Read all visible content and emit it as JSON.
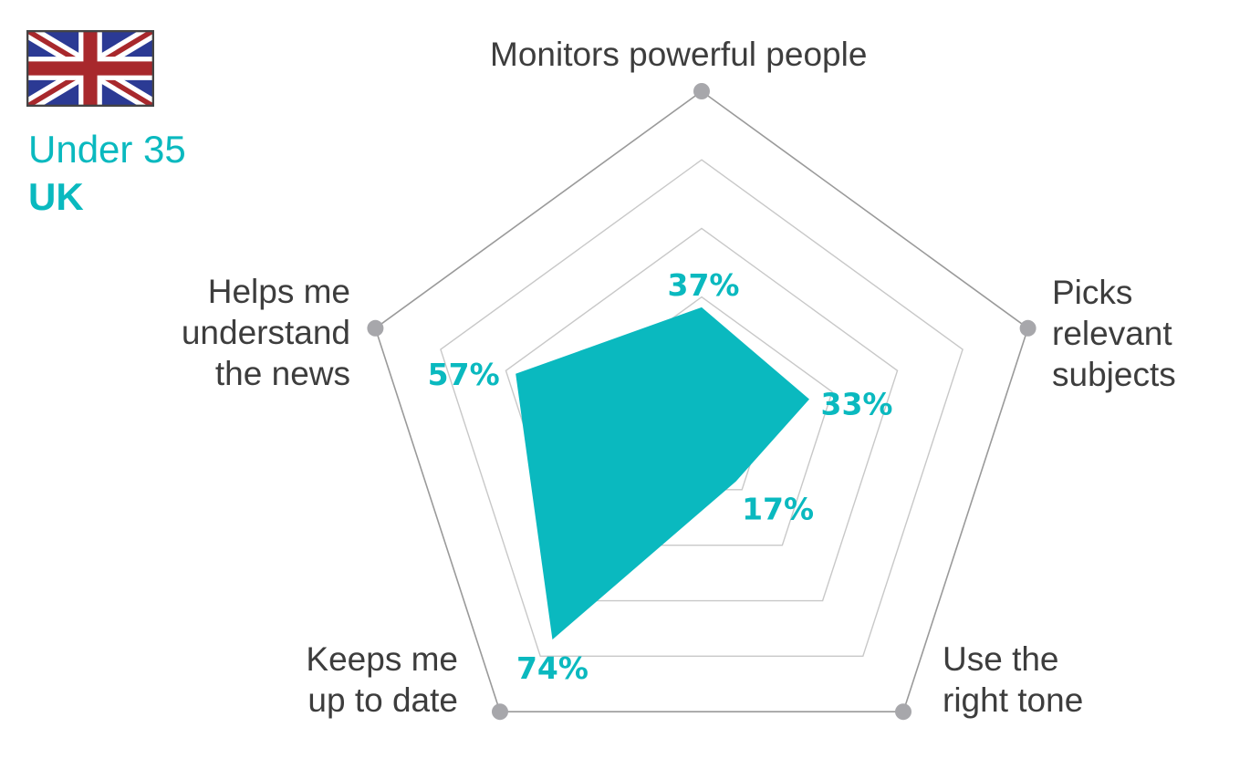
{
  "header": {
    "subtitle": "Under 35",
    "country": "UK",
    "flag_icon": "uk-flag-icon"
  },
  "colors": {
    "accent": "#0ab9bf",
    "grid": "#c8c8c8",
    "outer": "#9a9a9a",
    "marker": "#a7a7ab"
  },
  "chart_data": {
    "type": "radar",
    "title": "Under 35 UK",
    "axes": [
      "Monitors powerful people",
      "Picks relevant subjects",
      "Use the right tone",
      "Keeps me up to date",
      "Helps me understand the news"
    ],
    "axis_labels_display": [
      "Monitors powerful people",
      "Picks\nrelevant\nsubjects",
      "Use the\nright tone",
      "Keeps me\nup to date",
      "Helps me\nunderstand\nthe news"
    ],
    "values": [
      37,
      33,
      17,
      74,
      57
    ],
    "value_labels": [
      "37%",
      "33%",
      "17%",
      "74%",
      "57%"
    ],
    "range": [
      0,
      100
    ],
    "grid_levels": [
      20,
      40,
      60,
      80,
      100
    ]
  }
}
